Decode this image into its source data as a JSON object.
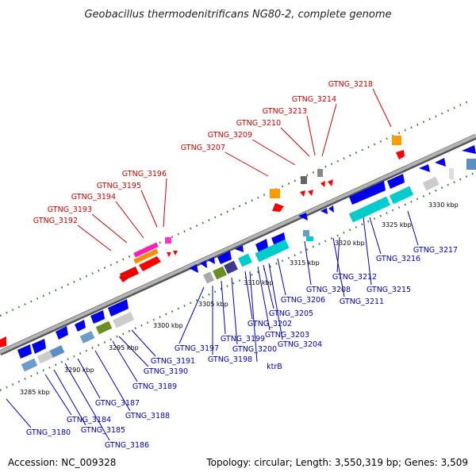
{
  "title": "Geobacillus thermodenitrificans NG80-2, complete genome",
  "footer": {
    "accession": "Accession: NC_009328",
    "summary": "Topology: circular; Length: 3,550,319 bp; Genes: 3,509"
  },
  "colors": {
    "axis": "#999999",
    "forward_label": "#cc0000",
    "reverse_label": "#0000bb",
    "dots": "#2a7a2a"
  },
  "ticks": [
    "3285 kbp",
    "3290 kbp",
    "3295 kbp",
    "3300 kbp",
    "3305 kbp",
    "3310 kbp",
    "3315 kbp",
    "3320 kbp",
    "3325 kbp",
    "3330 kbp"
  ],
  "forward_genes": [
    "GTNG_3192",
    "GTNG_3193",
    "GTNG_3194",
    "GTNG_3195",
    "GTNG_3196",
    "GTNG_3207",
    "GTNG_3209",
    "GTNG_3210",
    "GTNG_3213",
    "GTNG_3214",
    "GTNG_3218"
  ],
  "reverse_genes": [
    "GTNG_3180",
    "GTNG_3184",
    "GTNG_3185",
    "GTNG_3186",
    "GTNG_3187",
    "GTNG_3188",
    "GTNG_3189",
    "GTNG_3190",
    "GTNG_3191",
    "GTNG_3197",
    "GTNG_3198",
    "GTNG_3199",
    "GTNG_3200",
    "ktrB",
    "GTNG_3202",
    "GTNG_3203",
    "GTNG_3204",
    "GTNG_3205",
    "GTNG_3206",
    "GTNG_3208",
    "GTNG_3211",
    "GTNG_3212",
    "GTNG_3215",
    "GTNG_3216",
    "GTNG_3217"
  ]
}
